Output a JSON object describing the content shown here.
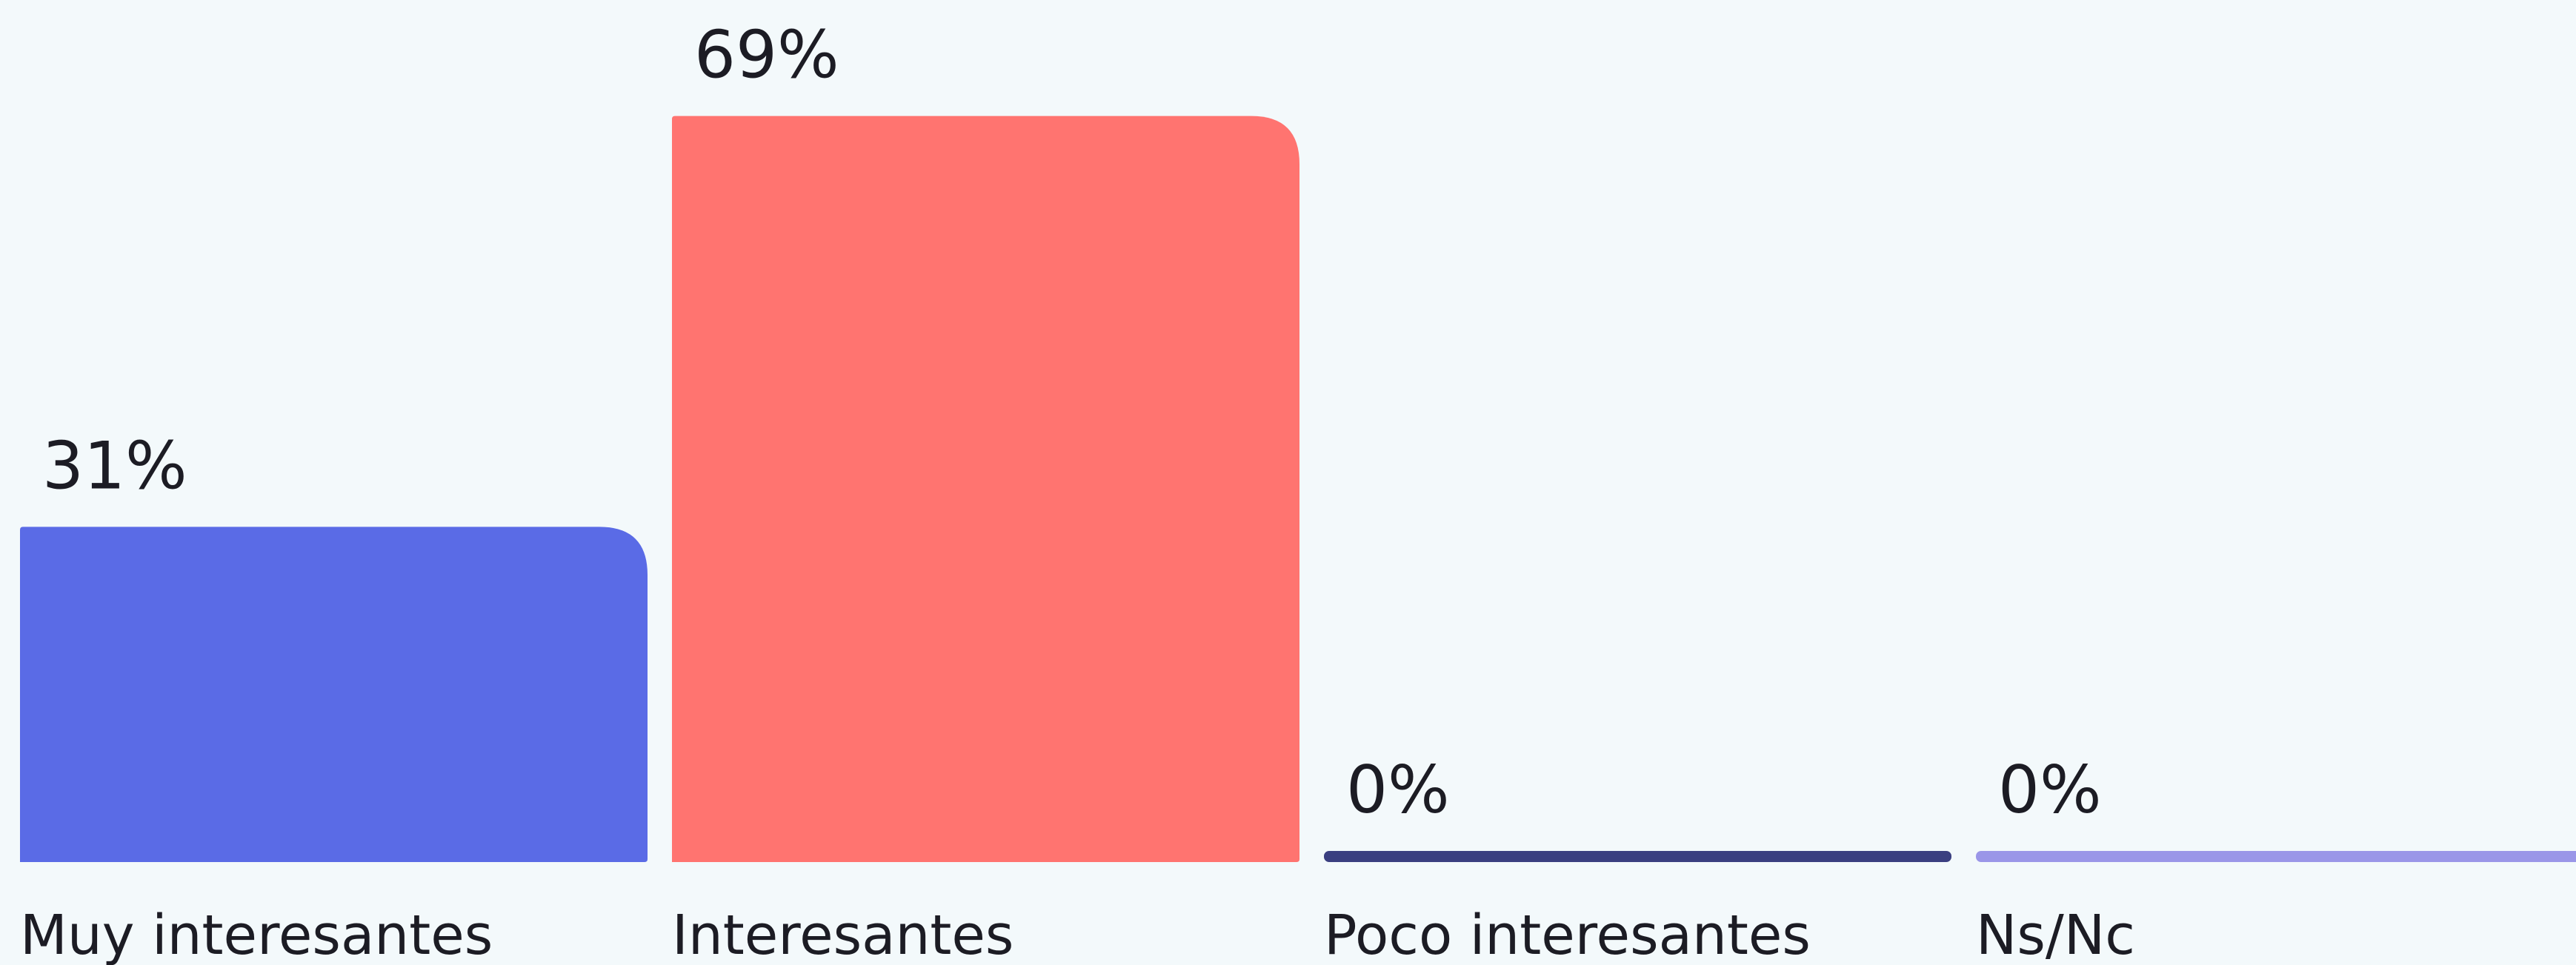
{
  "chart_data": {
    "type": "bar",
    "categories": [
      "Muy interesantes",
      "Interesantes",
      "Poco interesantes",
      "Ns/Nc"
    ],
    "values": [
      31,
      69,
      0,
      0
    ],
    "value_labels": [
      "31%",
      "69%",
      "0%",
      "0%"
    ],
    "colors": [
      "#5a6be6",
      "#ff7470",
      "#3a3f80",
      "#9a96e8"
    ],
    "ylim": [
      0,
      75
    ]
  }
}
